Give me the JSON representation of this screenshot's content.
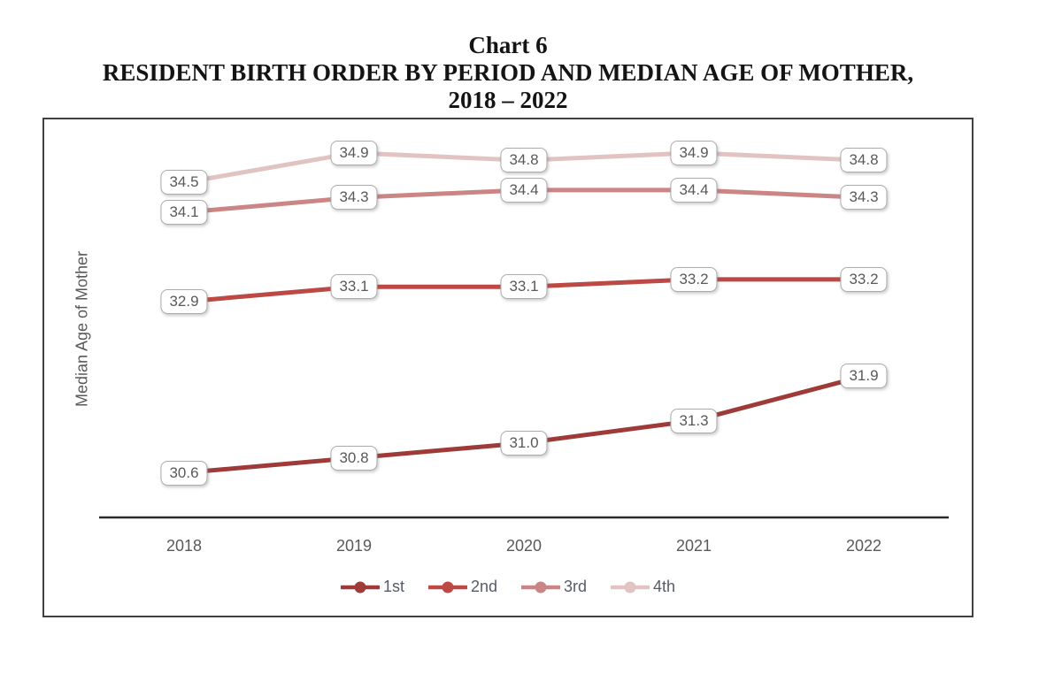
{
  "title": {
    "line1": "Chart 6",
    "line2": "RESIDENT BIRTH ORDER BY PERIOD AND MEDIAN AGE OF MOTHER,",
    "line3": "2018 – 2022"
  },
  "chart_data": {
    "type": "line",
    "categories": [
      "2018",
      "2019",
      "2020",
      "2021",
      "2022"
    ],
    "series": [
      {
        "name": "1st",
        "color": "#9E3B38",
        "values": [
          30.6,
          30.8,
          31.0,
          31.3,
          31.9
        ]
      },
      {
        "name": "2nd",
        "color": "#BC4944",
        "values": [
          32.9,
          33.1,
          33.1,
          33.2,
          33.2
        ]
      },
      {
        "name": "3rd",
        "color": "#CB8584",
        "values": [
          34.1,
          34.3,
          34.4,
          34.4,
          34.3
        ]
      },
      {
        "name": "4th",
        "color": "#E1C3C2",
        "values": [
          34.5,
          34.9,
          34.8,
          34.9,
          34.8
        ]
      }
    ],
    "xlabel": "",
    "ylabel": "Median Age of Mother",
    "ylim": [
      30.0,
      35.35
    ],
    "grid": false,
    "legend_position": "bottom",
    "data_labels": true,
    "label_text_color": "#595959",
    "axis_line_color": "#2b2b2b"
  }
}
